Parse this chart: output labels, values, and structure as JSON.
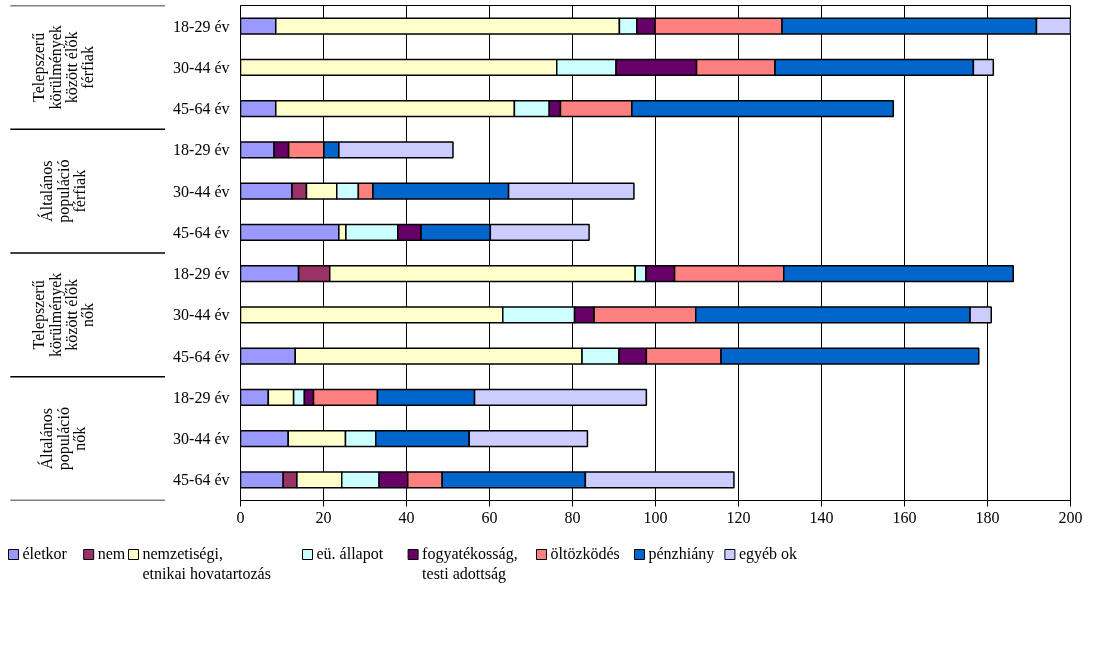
{
  "chart_data": {
    "type": "bar",
    "orientation": "horizontal",
    "stacked": true,
    "grid": "x",
    "legend": "bottom",
    "categories": [
      "18-29 év",
      "30-44 év",
      "45-64 év",
      "18-29 év",
      "30-44 év",
      "45-64 év",
      "18-29 év",
      "30-44 év",
      "45-64 év",
      "18-29 év",
      "30-44 év",
      "45-64 év"
    ],
    "annotations": [
      "Telepszerű\nkörülmények\nközött élők\nférfiak",
      "Általános\npopuláció\nférfiak",
      "Telepszerű\nkörülmények\nközött élők\nnők",
      "Általános\npopuláció\nnők"
    ],
    "xlim": [
      0,
      200
    ],
    "xticks": [
      0,
      20,
      40,
      60,
      80,
      100,
      120,
      140,
      160,
      180,
      200
    ],
    "series": [
      {
        "name": "életkor",
        "color": "#9999ff",
        "values": [
          8.5,
          null,
          8.5,
          8.1,
          12.4,
          23.7,
          14.0,
          null,
          13.2,
          6.7,
          11.5,
          10.3
        ]
      },
      {
        "name": "nem",
        "color": "#993366",
        "values": [
          null,
          null,
          null,
          null,
          3.5,
          null,
          7.5,
          null,
          null,
          null,
          null,
          3.3
        ]
      },
      {
        "name": "nemzetiségi,\netnikai hovatartozás",
        "color": "#ffffcc",
        "values": [
          82.8,
          76.2,
          57.5,
          null,
          7.3,
          1.7,
          73.6,
          63.2,
          69.1,
          6.1,
          13.8,
          10.8
        ]
      },
      {
        "name": "eü. állapot",
        "color": "#ccffff",
        "values": [
          4.2,
          14.3,
          8.4,
          null,
          5.2,
          12.5,
          2.6,
          17.3,
          8.9,
          2.6,
          7.3,
          9.0
        ]
      },
      {
        "name": "fogyatékosság,\ntesti adottság",
        "color": "#660066",
        "values": [
          4.4,
          19.4,
          2.7,
          3.5,
          null,
          5.6,
          6.9,
          4.7,
          6.6,
          2.2,
          null,
          6.9
        ]
      },
      {
        "name": "öltözködés",
        "color": "#ff8080",
        "values": [
          30.6,
          18.9,
          17.2,
          8.5,
          3.5,
          null,
          26.3,
          24.5,
          18.0,
          15.4,
          null,
          8.3
        ]
      },
      {
        "name": "pénzhiány",
        "color": "#0066cc",
        "values": [
          61.3,
          47.8,
          63.0,
          3.6,
          32.7,
          16.7,
          55.3,
          66.1,
          62.1,
          23.4,
          22.5,
          34.5
        ]
      },
      {
        "name": "egyéb ok",
        "color": "#ccccff",
        "values": [
          8.2,
          4.8,
          null,
          27.5,
          30.2,
          23.8,
          null,
          5.1,
          null,
          41.4,
          28.5,
          35.8
        ]
      }
    ]
  }
}
